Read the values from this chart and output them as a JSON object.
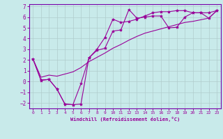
{
  "xlabel": "Windchill (Refroidissement éolien,°C)",
  "x_data": [
    0,
    1,
    2,
    3,
    4,
    5,
    6,
    7,
    8,
    9,
    10,
    11,
    12,
    13,
    14,
    15,
    16,
    17,
    18,
    19,
    20,
    21,
    22,
    23
  ],
  "line1_y": [
    2.1,
    0.1,
    0.2,
    -0.7,
    -2.1,
    -2.15,
    -2.1,
    2.2,
    2.9,
    3.1,
    4.7,
    4.8,
    6.7,
    5.9,
    6.0,
    6.1,
    6.1,
    5.0,
    5.05,
    6.0,
    6.4,
    6.4,
    5.9,
    6.6
  ],
  "line2_y": [
    2.1,
    0.15,
    0.2,
    -0.7,
    -2.1,
    -2.15,
    -0.2,
    2.2,
    3.0,
    4.1,
    5.8,
    5.5,
    5.6,
    5.8,
    6.1,
    6.4,
    6.5,
    6.5,
    6.6,
    6.6,
    6.4,
    6.4,
    6.4,
    6.6
  ],
  "line3_y": [
    2.1,
    0.4,
    0.6,
    0.5,
    0.7,
    0.9,
    1.3,
    1.85,
    2.25,
    2.65,
    3.1,
    3.45,
    3.85,
    4.2,
    4.5,
    4.7,
    4.9,
    5.1,
    5.3,
    5.5,
    5.6,
    5.75,
    5.9,
    6.6
  ],
  "line_color": "#990099",
  "bg_color": "#c8eaea",
  "grid_color": "#b0cccc",
  "axis_band_color": "#7700aa",
  "ylim": [
    -2.5,
    7.2
  ],
  "xlim": [
    -0.5,
    23.5
  ],
  "yticks": [
    -2,
    -1,
    0,
    1,
    2,
    3,
    4,
    5,
    6,
    7
  ],
  "xticks": [
    0,
    1,
    2,
    3,
    4,
    5,
    6,
    7,
    8,
    9,
    10,
    11,
    12,
    13,
    14,
    15,
    16,
    17,
    18,
    19,
    20,
    21,
    22,
    23
  ]
}
